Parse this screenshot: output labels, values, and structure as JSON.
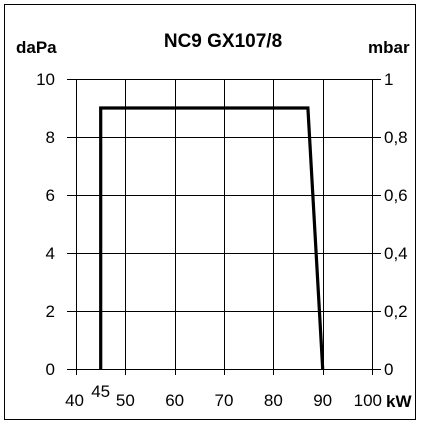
{
  "chart_data": {
    "type": "line",
    "title": "NC9  GX107/8",
    "ylabel_left": "daPa",
    "ylabel_right": "mbar",
    "xlabel": "kW",
    "xlim": [
      40,
      100
    ],
    "ylim": [
      0,
      10
    ],
    "x_ticks": [
      40,
      50,
      60,
      70,
      80,
      90,
      100
    ],
    "y_ticks_left": [
      "0",
      "2",
      "4",
      "6",
      "8",
      "10"
    ],
    "y_ticks_right": [
      "0",
      "0,2",
      "0,4",
      "0,6",
      "0,8",
      "1"
    ],
    "x_special_tick": "45",
    "grid": true,
    "series": [
      {
        "x": [
          45,
          45,
          87,
          90
        ],
        "y": [
          0,
          9,
          9,
          0
        ]
      }
    ]
  }
}
